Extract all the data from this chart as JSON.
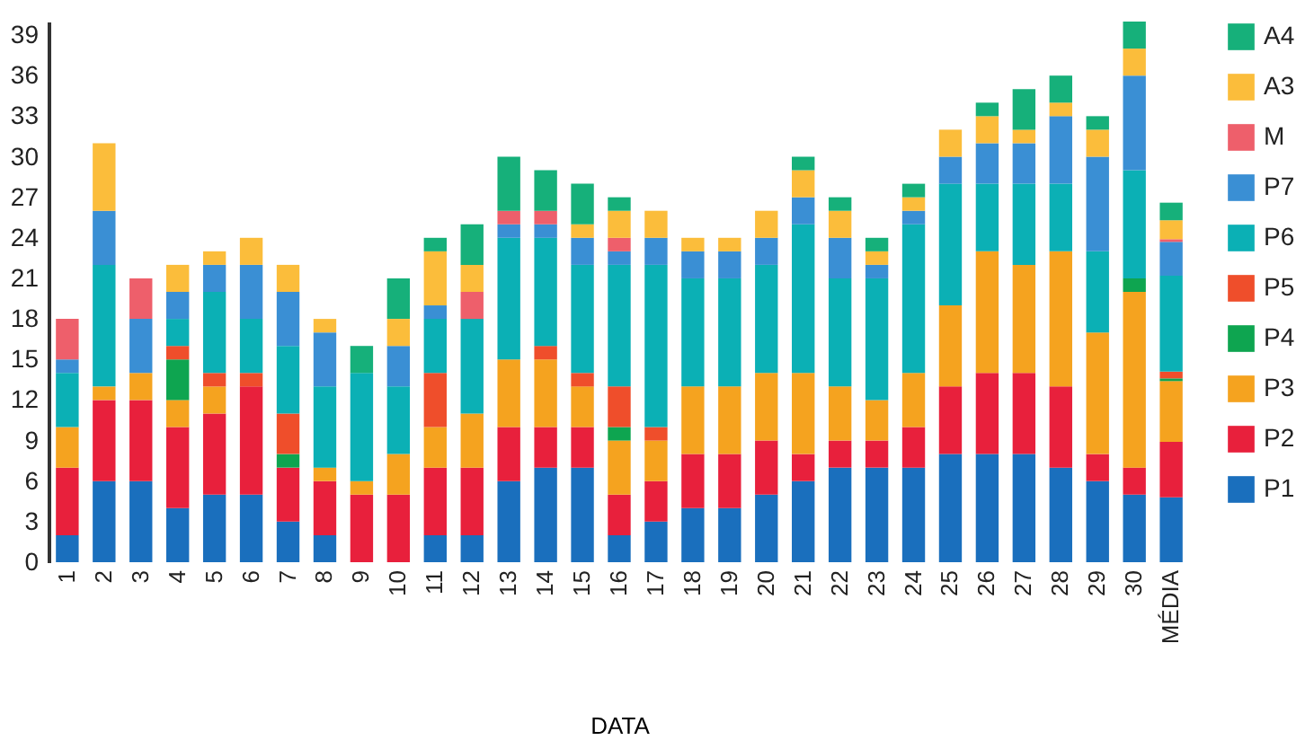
{
  "chart_data": {
    "type": "bar",
    "stacked": true,
    "xlabel": "DATA",
    "categories": [
      "1",
      "2",
      "3",
      "4",
      "5",
      "6",
      "7",
      "8",
      "9",
      "10",
      "11",
      "12",
      "13",
      "14",
      "15",
      "16",
      "17",
      "18",
      "19",
      "20",
      "21",
      "22",
      "23",
      "24",
      "25",
      "26",
      "27",
      "28",
      "29",
      "30",
      "MÉDIA"
    ],
    "series": [
      {
        "name": "P1",
        "color": "#1a6fbd",
        "values": [
          2,
          6,
          6,
          4,
          5,
          5,
          3,
          2,
          0,
          0,
          2,
          2,
          6,
          7,
          7,
          2,
          3,
          4,
          4,
          5,
          6,
          7,
          7,
          7,
          8,
          8,
          8,
          7,
          6,
          5,
          4.8
        ]
      },
      {
        "name": "P2",
        "color": "#e8203c",
        "values": [
          5,
          6,
          6,
          6,
          6,
          8,
          4,
          4,
          5,
          5,
          5,
          5,
          4,
          3,
          3,
          3,
          3,
          4,
          4,
          4,
          2,
          2,
          2,
          3,
          5,
          6,
          6,
          6,
          2,
          2,
          4.1
        ]
      },
      {
        "name": "P3",
        "color": "#f5a31f",
        "values": [
          3,
          1,
          2,
          2,
          2,
          0,
          0,
          1,
          1,
          3,
          3,
          4,
          5,
          5,
          3,
          4,
          3,
          5,
          5,
          5,
          6,
          4,
          3,
          4,
          6,
          9,
          8,
          10,
          9,
          13,
          4.5
        ]
      },
      {
        "name": "P4",
        "color": "#0ea550",
        "values": [
          0,
          0,
          0,
          3,
          0,
          0,
          1,
          0,
          0,
          0,
          0,
          0,
          0,
          0,
          0,
          1,
          0,
          0,
          0,
          0,
          0,
          0,
          0,
          0,
          0,
          0,
          0,
          0,
          0,
          1,
          0.2
        ]
      },
      {
        "name": "P5",
        "color": "#ef4e2b",
        "values": [
          0,
          0,
          0,
          1,
          1,
          1,
          3,
          0,
          0,
          0,
          4,
          0,
          0,
          1,
          1,
          3,
          1,
          0,
          0,
          0,
          0,
          0,
          0,
          0,
          0,
          0,
          0,
          0,
          0,
          0,
          0.5
        ]
      },
      {
        "name": "P6",
        "color": "#0bb0b5",
        "values": [
          4,
          9,
          0,
          2,
          6,
          4,
          5,
          6,
          8,
          5,
          4,
          7,
          9,
          8,
          8,
          9,
          12,
          8,
          8,
          8,
          11,
          8,
          9,
          11,
          9,
          5,
          6,
          5,
          6,
          8,
          7.1
        ]
      },
      {
        "name": "P7",
        "color": "#3a8fd4",
        "values": [
          1,
          4,
          4,
          2,
          2,
          4,
          4,
          4,
          0,
          3,
          1,
          0,
          1,
          1,
          2,
          1,
          2,
          2,
          2,
          2,
          2,
          3,
          1,
          1,
          2,
          3,
          3,
          5,
          7,
          7,
          2.5
        ]
      },
      {
        "name": "M",
        "color": "#ee5f6b",
        "values": [
          3,
          0,
          3,
          0,
          0,
          0,
          0,
          0,
          0,
          0,
          0,
          2,
          1,
          1,
          0,
          1,
          0,
          0,
          0,
          0,
          0,
          0,
          0,
          0,
          0,
          0,
          0,
          0,
          0,
          0,
          0.2
        ]
      },
      {
        "name": "A3",
        "color": "#fbbd3b",
        "values": [
          0,
          5,
          0,
          2,
          1,
          2,
          2,
          1,
          0,
          2,
          4,
          2,
          0,
          0,
          1,
          2,
          2,
          1,
          1,
          2,
          2,
          2,
          1,
          1,
          2,
          2,
          1,
          1,
          2,
          2,
          1.4
        ]
      },
      {
        "name": "A4",
        "color": "#16b07a",
        "values": [
          0,
          0,
          0,
          0,
          0,
          0,
          0,
          0,
          2,
          3,
          1,
          3,
          4,
          3,
          3,
          1,
          0,
          0,
          0,
          0,
          1,
          1,
          1,
          1,
          0,
          1,
          3,
          2,
          1,
          2,
          1.3
        ]
      }
    ],
    "ylim": [
      0,
      40
    ],
    "yticks": [
      0,
      3,
      6,
      9,
      12,
      15,
      18,
      21,
      24,
      27,
      30,
      33,
      36,
      39
    ],
    "grid": false,
    "legend": "right"
  }
}
